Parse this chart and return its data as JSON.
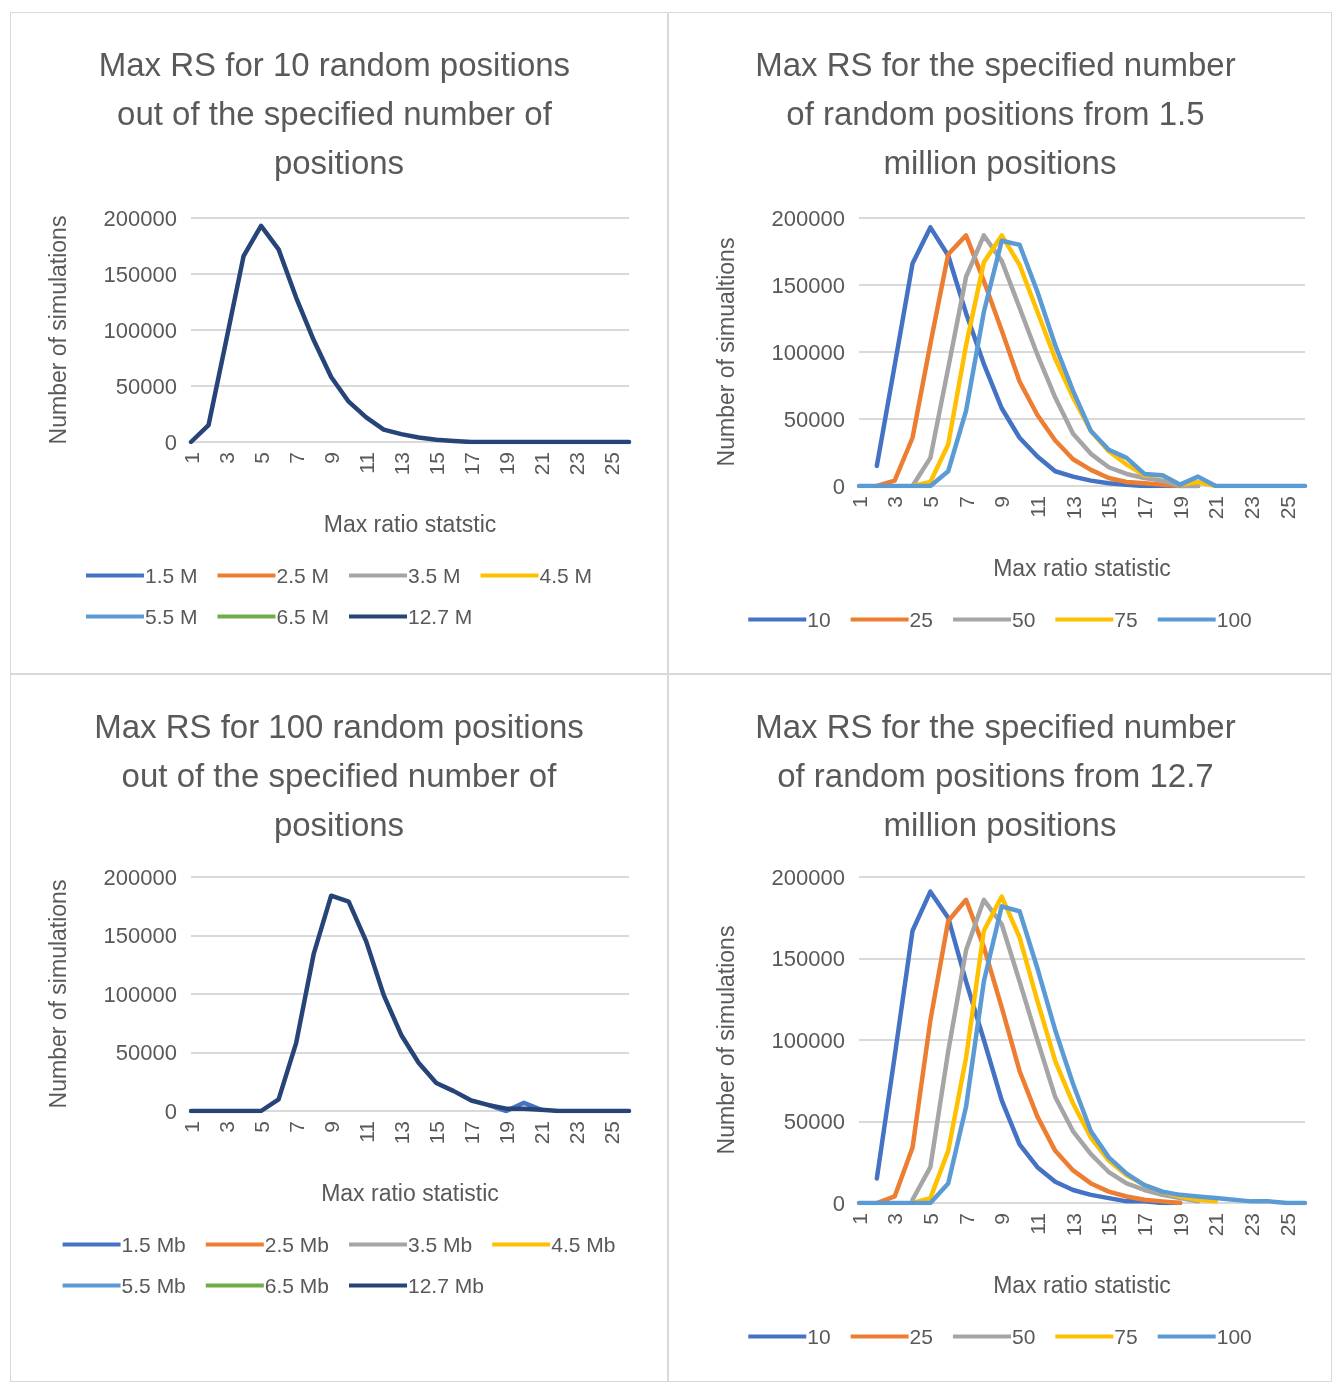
{
  "chart_data": [
    {
      "type": "line",
      "title": "Max RS for 10 random positions out of the specified number of positions",
      "xlabel": "Max ratio statstic",
      "ylabel": "Number of simulations",
      "categories": [
        "1",
        null,
        "3",
        null,
        "5",
        null,
        "7",
        null,
        "9",
        null,
        "11",
        null,
        "13",
        null,
        "15",
        null,
        "17",
        null,
        "19",
        null,
        "21",
        null,
        "23",
        null,
        "25",
        null
      ],
      "series": [
        {
          "name": "1.5 M",
          "color": "#4472c4",
          "values": [
            null,
            null,
            null,
            null,
            null,
            null,
            null,
            null,
            null,
            null,
            null,
            null,
            null,
            null,
            null,
            null,
            null,
            null,
            null,
            null,
            null,
            null,
            null,
            null,
            null,
            null
          ]
        },
        {
          "name": "2.5 M",
          "color": "#ed7d31",
          "values": [
            null,
            null,
            null,
            null,
            null,
            null,
            null,
            null,
            null,
            null,
            null,
            null,
            null,
            null,
            null,
            null,
            null,
            null,
            null,
            null,
            null,
            null,
            null,
            null,
            null,
            null
          ]
        },
        {
          "name": "3.5 M",
          "color": "#a5a5a5",
          "values": [
            null,
            null,
            null,
            null,
            null,
            null,
            null,
            null,
            null,
            null,
            null,
            null,
            null,
            null,
            null,
            null,
            null,
            null,
            null,
            null,
            null,
            null,
            null,
            null,
            null,
            null
          ]
        },
        {
          "name": "4.5 M",
          "color": "#ffc000",
          "values": [
            null,
            null,
            null,
            null,
            null,
            null,
            null,
            null,
            null,
            null,
            null,
            null,
            null,
            null,
            null,
            null,
            null,
            null,
            null,
            null,
            null,
            null,
            null,
            null,
            null,
            null
          ]
        },
        {
          "name": "5.5 M",
          "color": "#5b9bd5",
          "values": [
            null,
            null,
            null,
            null,
            null,
            null,
            null,
            null,
            null,
            null,
            null,
            null,
            null,
            null,
            null,
            null,
            null,
            null,
            null,
            null,
            null,
            null,
            null,
            null,
            null,
            null
          ]
        },
        {
          "name": "6.5 M",
          "color": "#70ad47",
          "values": [
            null,
            null,
            null,
            null,
            null,
            null,
            null,
            null,
            null,
            null,
            null,
            null,
            null,
            null,
            null,
            null,
            null,
            null,
            null,
            null,
            null,
            null,
            null,
            null,
            null,
            null
          ]
        },
        {
          "name": "12.7 M",
          "color": "#264478",
          "values": [
            0,
            15000,
            90000,
            166000,
            193000,
            172000,
            129000,
            91000,
            58000,
            36000,
            22000,
            11000,
            7000,
            4000,
            2000,
            1000,
            0,
            0,
            0,
            0,
            0,
            0,
            0,
            0,
            0,
            0
          ]
        }
      ],
      "ylim": [
        0,
        200000
      ],
      "yticks": [
        0,
        50000,
        100000,
        150000,
        200000
      ],
      "grid": "y",
      "legend": "bottom",
      "marker": "none",
      "line_style": "solid"
    },
    {
      "type": "line",
      "title": "Max RS for the specified number of random positions from 1.5 million positions",
      "xlabel": "Max ratio statistic",
      "ylabel": "Number of simualtions",
      "categories": [
        "1",
        null,
        "3",
        null,
        "5",
        null,
        "7",
        null,
        "9",
        null,
        "11",
        null,
        "13",
        null,
        "15",
        null,
        "17",
        null,
        "19",
        null,
        "21",
        null,
        "23",
        null,
        "25",
        null
      ],
      "series": [
        {
          "name": "10",
          "color": "#4472c4",
          "values": [
            null,
            15000,
            90000,
            166000,
            193000,
            172000,
            129000,
            91000,
            58000,
            36000,
            22000,
            11000,
            7000,
            4000,
            2000,
            1000,
            0,
            0,
            0,
            0,
            null,
            null,
            null,
            null,
            null,
            null
          ]
        },
        {
          "name": "25",
          "color": "#ed7d31",
          "values": [
            null,
            0,
            4000,
            36000,
            106000,
            173000,
            187000,
            153000,
            116000,
            78000,
            53000,
            34000,
            20000,
            12000,
            6000,
            3000,
            2000,
            1000,
            0,
            0,
            null,
            null,
            null,
            null,
            null,
            null
          ]
        },
        {
          "name": "50",
          "color": "#a5a5a5",
          "values": [
            null,
            null,
            null,
            0,
            21000,
            88000,
            156000,
            187000,
            168000,
            133000,
            98000,
            66000,
            39000,
            24000,
            14000,
            9000,
            6000,
            4000,
            0,
            0,
            null,
            null,
            null,
            null,
            null,
            null
          ]
        },
        {
          "name": "75",
          "color": "#ffc000",
          "values": [
            null,
            null,
            null,
            0,
            3000,
            31000,
            105000,
            167000,
            187000,
            165000,
            130000,
            95000,
            66000,
            41000,
            26000,
            16000,
            8000,
            8000,
            1000,
            3000,
            0,
            null,
            null,
            null,
            null,
            null
          ]
        },
        {
          "name": "100",
          "color": "#5b9bd5",
          "values": [
            0,
            0,
            0,
            0,
            0,
            11000,
            56000,
            130000,
            183000,
            180000,
            145000,
            105000,
            71000,
            41000,
            27000,
            21000,
            9000,
            8000,
            1000,
            7000,
            0,
            0,
            0,
            0,
            0,
            0
          ]
        }
      ],
      "ylim": [
        0,
        200000
      ],
      "yticks": [
        0,
        50000,
        100000,
        150000,
        200000
      ],
      "grid": "y",
      "legend": "bottom",
      "marker": "none",
      "line_style": "solid"
    },
    {
      "type": "line",
      "title": "Max RS for 100 random positions out of the specified number of positions",
      "xlabel": "Max ratio statistic",
      "ylabel": "Number of simulations",
      "categories": [
        "1",
        null,
        "3",
        null,
        "5",
        null,
        "7",
        null,
        "9",
        null,
        "11",
        null,
        "13",
        null,
        "15",
        null,
        "17",
        null,
        "19",
        null,
        "21",
        null,
        "23",
        null,
        "25",
        null
      ],
      "series": [
        {
          "name": "1.5 Mb",
          "color": "#4472c4",
          "values": [
            null,
            null,
            null,
            null,
            null,
            null,
            null,
            null,
            null,
            null,
            null,
            null,
            null,
            null,
            null,
            null,
            null,
            5000,
            0,
            7000,
            1000,
            null,
            null,
            null,
            null,
            null
          ]
        },
        {
          "name": "2.5 Mb",
          "color": "#ed7d31",
          "values": [
            null,
            null,
            null,
            null,
            null,
            null,
            null,
            null,
            null,
            null,
            null,
            null,
            null,
            null,
            null,
            null,
            null,
            null,
            null,
            null,
            null,
            null,
            null,
            null,
            null,
            null
          ]
        },
        {
          "name": "3.5 Mb",
          "color": "#a5a5a5",
          "values": [
            null,
            null,
            null,
            null,
            null,
            null,
            null,
            null,
            null,
            null,
            null,
            null,
            null,
            null,
            null,
            null,
            null,
            null,
            null,
            null,
            null,
            null,
            null,
            null,
            null,
            null
          ]
        },
        {
          "name": "4.5 Mb",
          "color": "#ffc000",
          "values": [
            null,
            null,
            null,
            null,
            null,
            null,
            null,
            null,
            null,
            null,
            null,
            null,
            null,
            null,
            null,
            null,
            null,
            null,
            null,
            null,
            null,
            null,
            null,
            null,
            null,
            null
          ]
        },
        {
          "name": "5.5 Mb",
          "color": "#5b9bd5",
          "values": [
            null,
            null,
            null,
            null,
            null,
            null,
            null,
            null,
            null,
            null,
            null,
            null,
            null,
            null,
            null,
            null,
            null,
            null,
            null,
            null,
            null,
            null,
            null,
            null,
            null,
            null
          ]
        },
        {
          "name": "6.5 Mb",
          "color": "#70ad47",
          "values": [
            null,
            null,
            null,
            null,
            null,
            null,
            null,
            null,
            null,
            null,
            null,
            null,
            null,
            null,
            null,
            null,
            null,
            null,
            null,
            null,
            null,
            null,
            null,
            null,
            null,
            null
          ]
        },
        {
          "name": "12.7 Mb",
          "color": "#264478",
          "values": [
            0,
            0,
            0,
            0,
            0,
            10000,
            58000,
            134000,
            184000,
            179000,
            145000,
            99000,
            65000,
            41000,
            24000,
            17000,
            9000,
            5000,
            2000,
            2000,
            1000,
            0,
            0,
            0,
            0,
            0
          ]
        }
      ],
      "ylim": [
        0,
        200000
      ],
      "yticks": [
        0,
        50000,
        100000,
        150000,
        200000
      ],
      "grid": "y",
      "legend": "bottom",
      "marker": "none",
      "line_style": "solid"
    },
    {
      "type": "line",
      "title": "Max RS for the specified number of random positions from 12.7 million positions",
      "xlabel": "Max ratio statistic",
      "ylabel": "Number of simulations",
      "categories": [
        "1",
        null,
        "3",
        null,
        "5",
        null,
        "7",
        null,
        "9",
        null,
        "11",
        null,
        "13",
        null,
        "15",
        null,
        "17",
        null,
        "19",
        null,
        "21",
        null,
        "23",
        null,
        "25",
        null
      ],
      "series": [
        {
          "name": "10",
          "color": "#4472c4",
          "values": [
            null,
            15000,
            90000,
            167000,
            191000,
            175000,
            136000,
            100000,
            63000,
            36000,
            22000,
            13000,
            8000,
            5000,
            3000,
            1000,
            1000,
            0,
            0,
            null,
            null,
            null,
            null,
            null,
            null,
            null
          ]
        },
        {
          "name": "25",
          "color": "#ed7d31",
          "values": [
            null,
            0,
            4000,
            34000,
            112000,
            173000,
            186000,
            157000,
            120000,
            81000,
            53000,
            32000,
            20000,
            12000,
            7000,
            4000,
            2000,
            1000,
            0,
            null,
            null,
            null,
            null,
            null,
            null,
            null
          ]
        },
        {
          "name": "50",
          "color": "#a5a5a5",
          "values": [
            null,
            null,
            null,
            2000,
            22000,
            93000,
            155000,
            186000,
            171000,
            136000,
            100000,
            65000,
            44000,
            30000,
            19000,
            12000,
            8000,
            5000,
            3000,
            1000,
            null,
            null,
            null,
            null,
            null,
            null
          ]
        },
        {
          "name": "75",
          "color": "#ffc000",
          "values": [
            null,
            null,
            null,
            0,
            3000,
            32000,
            89000,
            167000,
            188000,
            163000,
            124000,
            87000,
            61000,
            40000,
            26000,
            17000,
            11000,
            7000,
            4000,
            2000,
            1000,
            null,
            null,
            null,
            null,
            null
          ]
        },
        {
          "name": "100",
          "color": "#5b9bd5",
          "values": [
            0,
            0,
            0,
            0,
            0,
            12000,
            59000,
            136000,
            182000,
            179000,
            144000,
            106000,
            73000,
            44000,
            28000,
            18000,
            11000,
            7000,
            5000,
            4000,
            3000,
            2000,
            1000,
            1000,
            0,
            0
          ]
        }
      ],
      "ylim": [
        0,
        200000
      ],
      "yticks": [
        0,
        50000,
        100000,
        150000,
        200000
      ],
      "grid": "y",
      "legend": "bottom",
      "marker": "none",
      "line_style": "solid"
    }
  ]
}
